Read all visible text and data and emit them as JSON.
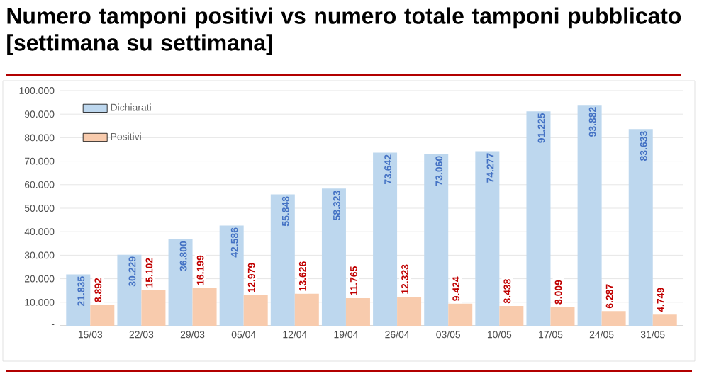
{
  "chart_data": {
    "type": "bar",
    "title": "Numero tamponi positivi vs numero totale tamponi pubblicato [settimana su settimana]",
    "categories": [
      "15/03",
      "22/03",
      "29/03",
      "05/04",
      "12/04",
      "19/04",
      "26/04",
      "03/05",
      "10/05",
      "17/05",
      "24/05",
      "31/05"
    ],
    "series": [
      {
        "name": "Dichiarati",
        "color": "#bdd7ee",
        "values": [
          21835,
          30229,
          36800,
          42586,
          55848,
          58323,
          73642,
          73060,
          74277,
          91225,
          93882,
          83633
        ],
        "value_labels": [
          "21.835",
          "30.229",
          "36.800",
          "42.586",
          "55.848",
          "58.323",
          "73.642",
          "73.060",
          "74.277",
          "91.225",
          "93.882",
          "83.633"
        ]
      },
      {
        "name": "Positivi",
        "color": "#f8cbad",
        "values": [
          8892,
          15102,
          16199,
          12979,
          13626,
          11765,
          12323,
          9424,
          8438,
          8009,
          6287,
          4749
        ],
        "value_labels": [
          "8.892",
          "15.102",
          "16.199",
          "12.979",
          "13.626",
          "11.765",
          "12.323",
          "9.424",
          "8.438",
          "8.009",
          "6.287",
          "4.749"
        ]
      }
    ],
    "ylim": [
      0,
      100000
    ],
    "yticks": [
      {
        "value": 0,
        "label": "-"
      },
      {
        "value": 10000,
        "label": "10.000"
      },
      {
        "value": 20000,
        "label": "20.000"
      },
      {
        "value": 30000,
        "label": "30.000"
      },
      {
        "value": 40000,
        "label": "40.000"
      },
      {
        "value": 50000,
        "label": "50.000"
      },
      {
        "value": 60000,
        "label": "60.000"
      },
      {
        "value": 70000,
        "label": "70.000"
      },
      {
        "value": 80000,
        "label": "80.000"
      },
      {
        "value": 90000,
        "label": "90.000"
      },
      {
        "value": 100000,
        "label": "100.000"
      }
    ],
    "grid": "y",
    "legend": "top left"
  }
}
